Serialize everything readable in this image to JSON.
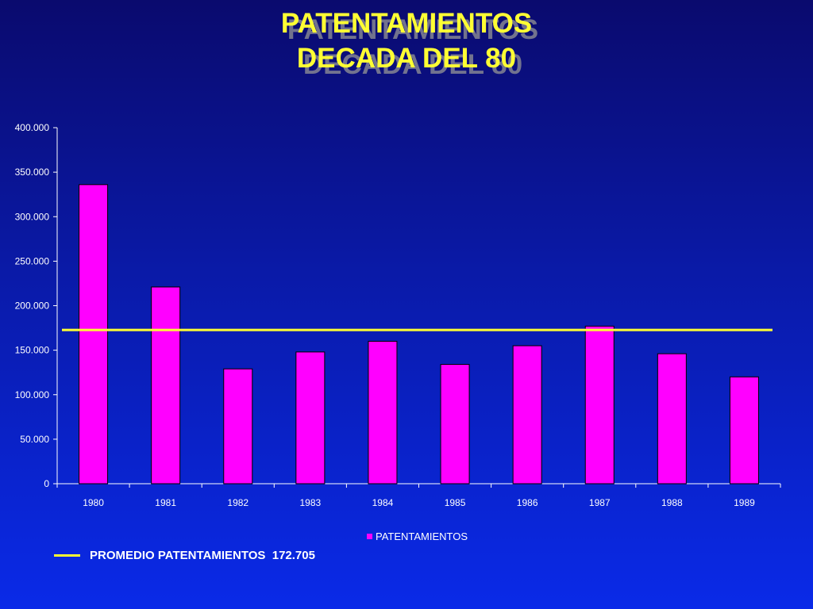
{
  "title": {
    "line1": "PATENTAMIENTOS",
    "line2": "DECADA DEL 80"
  },
  "legend": {
    "series_label": "PATENTAMIENTOS",
    "average_label": "PROMEDIO PATENTAMIENTOS  172.705"
  },
  "colors": {
    "bar": "#ff00ff",
    "average_line": "#ffff33",
    "axis": "#ffffff"
  },
  "chart_data": {
    "type": "bar",
    "categories": [
      "1980",
      "1981",
      "1982",
      "1983",
      "1984",
      "1985",
      "1986",
      "1987",
      "1988",
      "1989"
    ],
    "series": [
      {
        "name": "PATENTAMIENTOS",
        "values": [
          336000,
          221000,
          129000,
          148000,
          160000,
          134000,
          155000,
          177000,
          146000,
          120000
        ]
      }
    ],
    "average": 172705,
    "ylim": [
      0,
      400000
    ],
    "yticks": [
      0,
      50000,
      100000,
      150000,
      200000,
      250000,
      300000,
      350000,
      400000
    ],
    "ytick_labels": [
      "0",
      "50.000",
      "100.000",
      "150.000",
      "200.000",
      "250.000",
      "300.000",
      "350.000",
      "400.000"
    ],
    "legend_position": "bottom",
    "grid": false
  }
}
